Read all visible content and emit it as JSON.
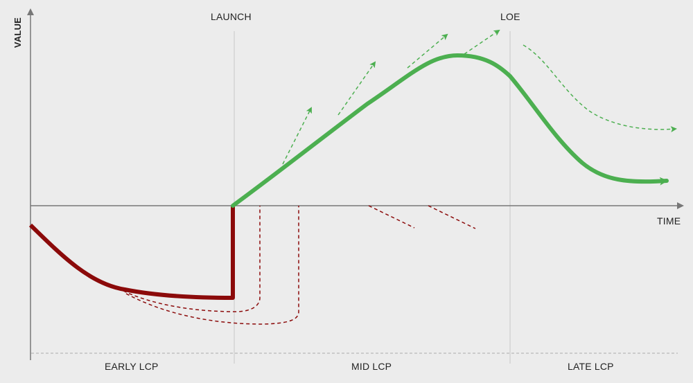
{
  "labels": {
    "y_axis": "VALUE",
    "x_axis": "TIME",
    "launch": "LAUNCH",
    "loe": "LOE",
    "early_lcp": "EARLY LCP",
    "mid_lcp": "MID LCP",
    "late_lcp": "LATE LCP"
  },
  "colors": {
    "background": "#ececec",
    "axis": "#777777",
    "gridline": "#c8c8c8",
    "investment_curve": "#8b0a0a",
    "value_curve": "#4caf50"
  }
}
